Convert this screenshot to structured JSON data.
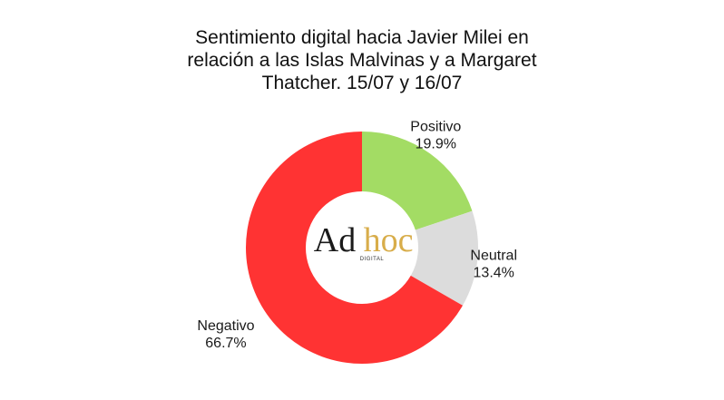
{
  "chart_data": {
    "type": "pie",
    "title_lines": [
      "Sentimiento digital hacia Javier Milei en",
      "relación a las Islas Malvinas y a Margaret",
      "Thatcher. 15/07 y 16/07"
    ],
    "slices": [
      {
        "label": "Positivo",
        "value": 19.9,
        "value_text": "19.9%",
        "color": "#a3dc64"
      },
      {
        "label": "Neutral",
        "value": 13.4,
        "value_text": "13.4%",
        "color": "#dcdcdc"
      },
      {
        "label": "Negativo",
        "value": 66.7,
        "value_text": "66.7%",
        "color": "#ff3333"
      }
    ],
    "donut": true,
    "start_angle": "12 o'clock",
    "direction": "clockwise",
    "data_labels": "outside"
  },
  "logo": {
    "word1": "Ad",
    "word2": "hoc",
    "sub": "DIGITAL",
    "color_word1": "#1a1a1a",
    "color_word2": "#d8ad4a"
  }
}
